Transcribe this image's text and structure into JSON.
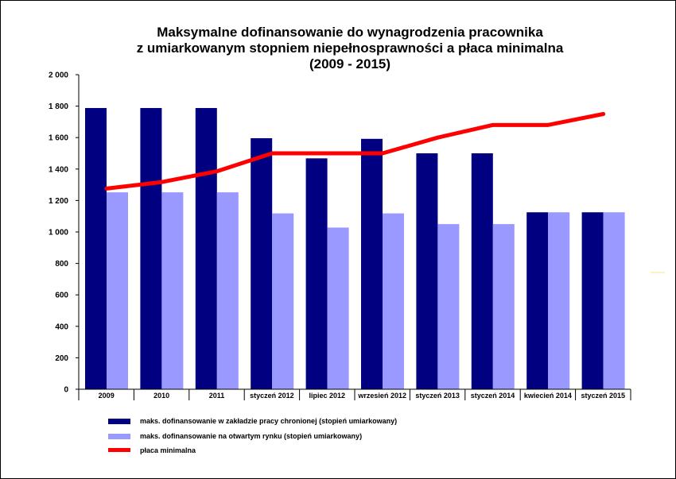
{
  "chart_data": {
    "type": "bar",
    "title": [
      "Maksymalne dofinansowanie do wynagrodzenia pracownika",
      "z umiarkowanym stopniem niepełnosprawności a płaca minimalna",
      "(2009 - 2015)"
    ],
    "categories": [
      "2009",
      "2010",
      "2011",
      "styczeń 2012",
      "lipiec 2012",
      "wrzesień 2012",
      "styczeń 2013",
      "styczeń 2014",
      "kwiecień 2014",
      "styczeń 2015"
    ],
    "ylim": [
      0,
      2000
    ],
    "yticks": [
      0,
      200,
      400,
      600,
      800,
      1000,
      1200,
      1400,
      1600,
      1800,
      2000
    ],
    "ytick_labels": [
      "0",
      "200",
      "400",
      "600",
      "800",
      "1 000",
      "1 200",
      "1 400",
      "1 600",
      "1 800",
      "2 000"
    ],
    "grid": false,
    "legend_position": "bottom-left",
    "series": [
      {
        "name": "maks. dofinansowanie w zakładzie pracy chronionej (stopień umiarkowany)",
        "type": "bar",
        "color": "#000080",
        "values": [
          1788,
          1788,
          1788,
          1596,
          1468,
          1592,
          1500,
          1500,
          1125,
          1125
        ]
      },
      {
        "name": "maks. dofinansowanie na otwartym rynku (stopień umiarkowany)",
        "type": "bar",
        "color": "#9999FF",
        "values": [
          1252,
          1252,
          1252,
          1118,
          1028,
          1118,
          1050,
          1050,
          1125,
          1125
        ]
      },
      {
        "name": "płaca minimalna",
        "type": "line",
        "color": "#FF0000",
        "values": [
          1276,
          1317,
          1386,
          1500,
          1500,
          1500,
          1600,
          1680,
          1680,
          1750
        ]
      }
    ]
  }
}
